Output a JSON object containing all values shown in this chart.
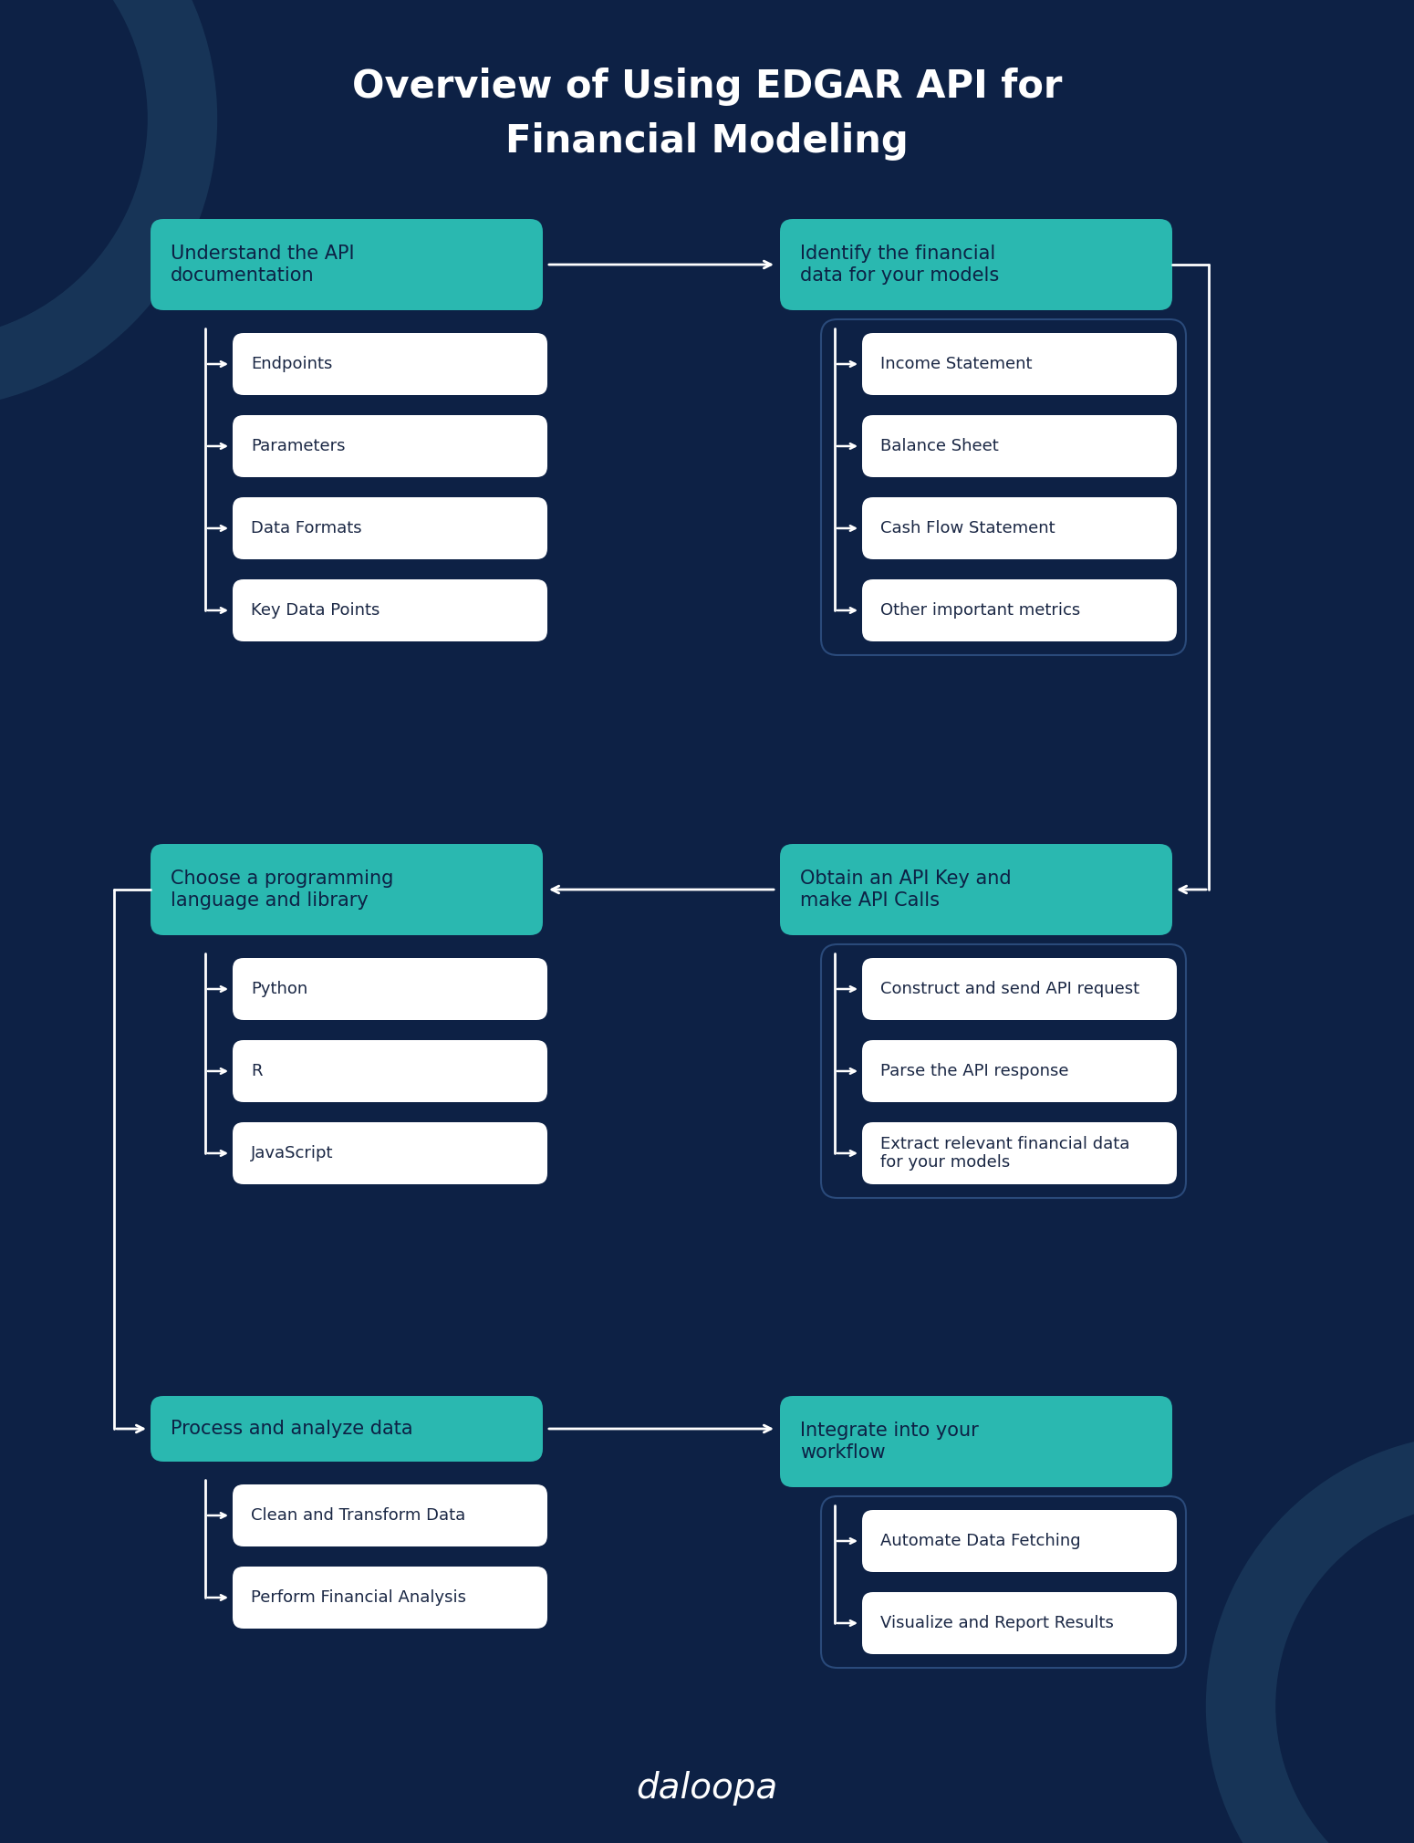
{
  "bg_color": "#0d2145",
  "teal_color": "#2ab8b0",
  "white_color": "#ffffff",
  "dark_text": "#0d2145",
  "item_text_color": "#1a2744",
  "title_line1": "Overview of Using EDGAR API for",
  "title_line2": "Financial Modeling",
  "sections": [
    {
      "header": "Understand the API\ndocumentation",
      "items": [
        "Endpoints",
        "Parameters",
        "Data Formats",
        "Key Data Points"
      ],
      "col": 0,
      "row": 0,
      "has_border": false
    },
    {
      "header": "Identify the financial\ndata for your models",
      "items": [
        "Income Statement",
        "Balance Sheet",
        "Cash Flow Statement",
        "Other important metrics"
      ],
      "col": 1,
      "row": 0,
      "has_border": true
    },
    {
      "header": "Choose a programming\nlanguage and library",
      "items": [
        "Python",
        "R",
        "JavaScript"
      ],
      "col": 0,
      "row": 1,
      "has_border": false
    },
    {
      "header": "Obtain an API Key and\nmake API Calls",
      "items": [
        "Construct and send API request",
        "Parse the API response",
        "Extract relevant financial data\nfor your models"
      ],
      "col": 1,
      "row": 1,
      "has_border": true
    },
    {
      "header": "Process and analyze data",
      "items": [
        "Clean and Transform Data",
        "Perform Financial Analysis"
      ],
      "col": 0,
      "row": 2,
      "has_border": false
    },
    {
      "header": "Integrate into your\nworkflow",
      "items": [
        "Automate Data Fetching",
        "Visualize and Report Results"
      ],
      "col": 1,
      "row": 2,
      "has_border": true
    }
  ],
  "logo_text": "daloopa",
  "arrow_color": "#ffffff",
  "border_color": "#2a4a7a"
}
